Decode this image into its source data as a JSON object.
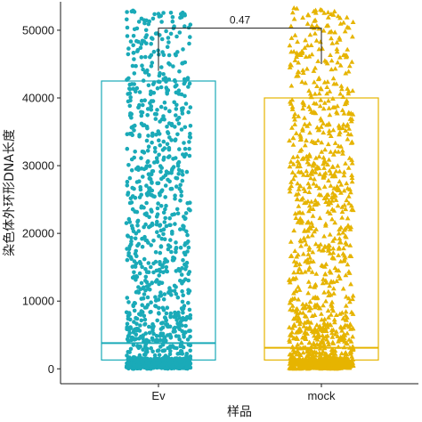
{
  "chart_data": {
    "type": "box-jitter",
    "xlabel": "样品",
    "ylabel": "染色体外环形DNA长度",
    "ylim": [
      -2200,
      54200
    ],
    "yticks": [
      0,
      10000,
      20000,
      30000,
      40000,
      50000
    ],
    "grid": false,
    "legend": "none",
    "categories": [
      "Ev",
      "mock"
    ],
    "series": [
      {
        "color": "#1aaab8",
        "marker": "circle",
        "box": {
          "q1": 1300,
          "median": 3800,
          "q3": 42500,
          "whisker_low": 0,
          "whisker_high": 53000
        }
      },
      {
        "color": "#e6b400",
        "marker": "triangle",
        "box": {
          "q1": 1300,
          "median": 3100,
          "q3": 40000,
          "whisker_low": 0,
          "whisker_high": 53500
        }
      }
    ],
    "comparison": {
      "groups": [
        "Ev",
        "mock"
      ],
      "label": "0.47",
      "bracket_y": 50300,
      "drop_to": [
        44000,
        45000
      ]
    }
  }
}
